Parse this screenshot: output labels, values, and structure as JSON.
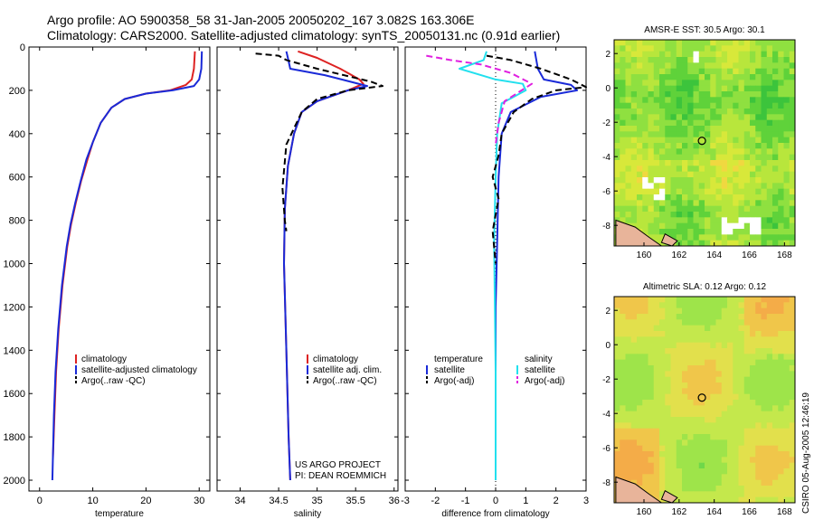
{
  "title_line1": "Argo profile: AO 5900358_58 31-Jan-2005 20050202_167 3.082S 163.306E",
  "title_line2": "Climatology: CARS2000. Satellite-adjusted climatology: synTS_20050131.nc (0.91d earlier)",
  "credit": "CSIRO 05-Aug-2005 12:46:19",
  "project_line1": "US ARGO PROJECT",
  "project_line2": "PI: DEAN ROEMMICH",
  "colors": {
    "climatology": "#dd2222",
    "satellite": "#1a2ad8",
    "argo": "#000000",
    "salinity_sat": "#22e0ee",
    "salinity_argo": "#e020e0"
  },
  "chart_data": [
    {
      "type": "line",
      "id": "temperature",
      "xlabel": "temperature",
      "ylabel": "",
      "xlim": [
        -2,
        32
      ],
      "ylim": [
        2050,
        0
      ],
      "xticks": [
        0,
        10,
        20,
        30
      ],
      "yticks": [
        0,
        200,
        400,
        600,
        800,
        1000,
        1200,
        1400,
        1600,
        1800,
        2000
      ],
      "legend": [
        "climatology",
        "satellite-adjusted climatology",
        "Argo(..raw -QC)"
      ],
      "series": [
        {
          "name": "climatology",
          "style": "climatology",
          "x": [
            29.2,
            29.0,
            28.6,
            27.5,
            24.5,
            20.0,
            16.0,
            13.5,
            11.5,
            10.0,
            9.0,
            7.8,
            6.8,
            5.9,
            5.2,
            4.3,
            3.6,
            3.1,
            2.8,
            2.5
          ],
          "y": [
            20,
            100,
            150,
            175,
            200,
            215,
            240,
            280,
            350,
            440,
            520,
            620,
            720,
            820,
            920,
            1100,
            1300,
            1500,
            1700,
            1900
          ]
        },
        {
          "name": "satellite",
          "style": "satellite",
          "x": [
            30.5,
            30.4,
            30.0,
            29.0,
            25.0,
            20.0,
            16.0,
            13.5,
            11.5,
            10.0,
            8.8,
            7.7,
            6.7,
            5.8,
            5.1,
            4.2,
            3.5,
            3.0,
            2.7,
            2.4
          ],
          "y": [
            20,
            100,
            150,
            180,
            200,
            215,
            240,
            280,
            350,
            440,
            520,
            620,
            720,
            820,
            920,
            1100,
            1300,
            1500,
            1700,
            2000
          ]
        }
      ]
    },
    {
      "type": "line",
      "id": "salinity",
      "xlabel": "salinity",
      "xlim": [
        33.7,
        36.05
      ],
      "ylim": [
        2050,
        0
      ],
      "xticks": [
        34,
        34.5,
        35,
        35.5,
        36
      ],
      "xtick_labels": [
        "34",
        "34.5",
        "35",
        "35.5",
        "36"
      ],
      "legend": [
        "climatology",
        "satellite adj. clim.",
        "Argo(..raw -QC)"
      ],
      "series": [
        {
          "name": "climatology",
          "style": "climatology",
          "x": [
            34.75,
            35.0,
            35.3,
            35.55,
            35.6,
            35.4,
            35.0,
            34.8,
            34.7,
            34.62,
            34.58,
            34.57,
            34.6,
            34.63,
            34.65
          ],
          "y": [
            20,
            50,
            100,
            150,
            170,
            200,
            250,
            300,
            400,
            550,
            750,
            1000,
            1400,
            1800,
            2000
          ]
        },
        {
          "name": "satellite",
          "style": "satellite",
          "x": [
            34.6,
            34.62,
            34.65,
            35.1,
            35.65,
            35.4,
            35.0,
            34.8,
            34.7,
            34.62,
            34.58,
            34.57,
            34.6,
            34.63,
            34.65
          ],
          "y": [
            20,
            50,
            100,
            130,
            180,
            200,
            250,
            300,
            400,
            550,
            750,
            1000,
            1400,
            1800,
            2000
          ]
        },
        {
          "name": "argo",
          "style": "argo",
          "x": [
            34.2,
            34.5,
            34.6,
            35.0,
            35.7,
            35.85,
            35.4,
            35.0,
            34.8,
            34.6,
            34.55,
            34.58,
            34.6
          ],
          "y": [
            30,
            40,
            60,
            100,
            160,
            180,
            200,
            240,
            300,
            450,
            650,
            800,
            850
          ]
        }
      ]
    },
    {
      "type": "line",
      "id": "difference",
      "xlabel": "difference from climatology",
      "xlim": [
        -3,
        3
      ],
      "ylim": [
        2050,
        0
      ],
      "xticks": [
        -3,
        -2,
        -1,
        0,
        1,
        2,
        3
      ],
      "legend": [
        "temperature",
        "satellite",
        "Argo(-adj)",
        "salinity",
        "satellite",
        "Argo(-adj)"
      ],
      "series": [
        {
          "name": "temperature satellite",
          "style": "satellite",
          "x": [
            1.3,
            1.4,
            1.6,
            2.5,
            2.7,
            1.5,
            0.5,
            0.2,
            0.1,
            0.05,
            0.0,
            0.0,
            0.0
          ],
          "y": [
            20,
            100,
            150,
            175,
            200,
            230,
            300,
            400,
            600,
            900,
            1200,
            1600,
            2000
          ]
        },
        {
          "name": "salinity satellite",
          "style": "salinity_sat",
          "x": [
            -0.3,
            -0.4,
            -1.2,
            0.0,
            0.9,
            1.0,
            0.2,
            0.05,
            0.0,
            -0.05,
            0.0,
            0.0
          ],
          "y": [
            20,
            60,
            100,
            150,
            170,
            200,
            260,
            400,
            600,
            900,
            1500,
            2000
          ]
        },
        {
          "name": "salinity Argo(-adj)",
          "style": "salinity_argo",
          "x": [
            -2.3,
            -1.5,
            -0.5,
            0.5,
            1.2,
            0.3,
            0.1,
            0.0
          ],
          "y": [
            40,
            60,
            80,
            120,
            170,
            250,
            350,
            450
          ]
        },
        {
          "name": "temperature Argo(-adj)",
          "style": "argo",
          "x": [
            -0.3,
            0.5,
            1.5,
            2.5,
            3.0,
            2.0,
            1.2,
            0.6,
            0.2,
            0.1,
            -0.1,
            0.1,
            -0.1,
            0.0
          ],
          "y": [
            40,
            60,
            100,
            150,
            185,
            200,
            240,
            300,
            400,
            500,
            600,
            700,
            850,
            1000
          ]
        }
      ]
    },
    {
      "type": "heatmap",
      "id": "sst_map",
      "title": "AMSR-E SST: 30.5 Argo: 30.1",
      "xlim": [
        158.3,
        168.6
      ],
      "ylim": [
        -9.2,
        2.8
      ],
      "xticks": [
        160,
        162,
        164,
        166,
        168
      ],
      "yticks": [
        2,
        0,
        -2,
        -4,
        -6,
        -8
      ],
      "marker": {
        "lon": 163.3,
        "lat": -3.08
      }
    },
    {
      "type": "heatmap",
      "id": "sla_map",
      "title": "Altimetric SLA: 0.12 Argo: 0.12",
      "xlim": [
        158.3,
        168.6
      ],
      "ylim": [
        -9.2,
        2.8
      ],
      "xticks": [
        160,
        162,
        164,
        166,
        168
      ],
      "yticks": [
        2,
        0,
        -2,
        -4,
        -6,
        -8
      ],
      "marker": {
        "lon": 163.3,
        "lat": -3.08
      }
    }
  ]
}
